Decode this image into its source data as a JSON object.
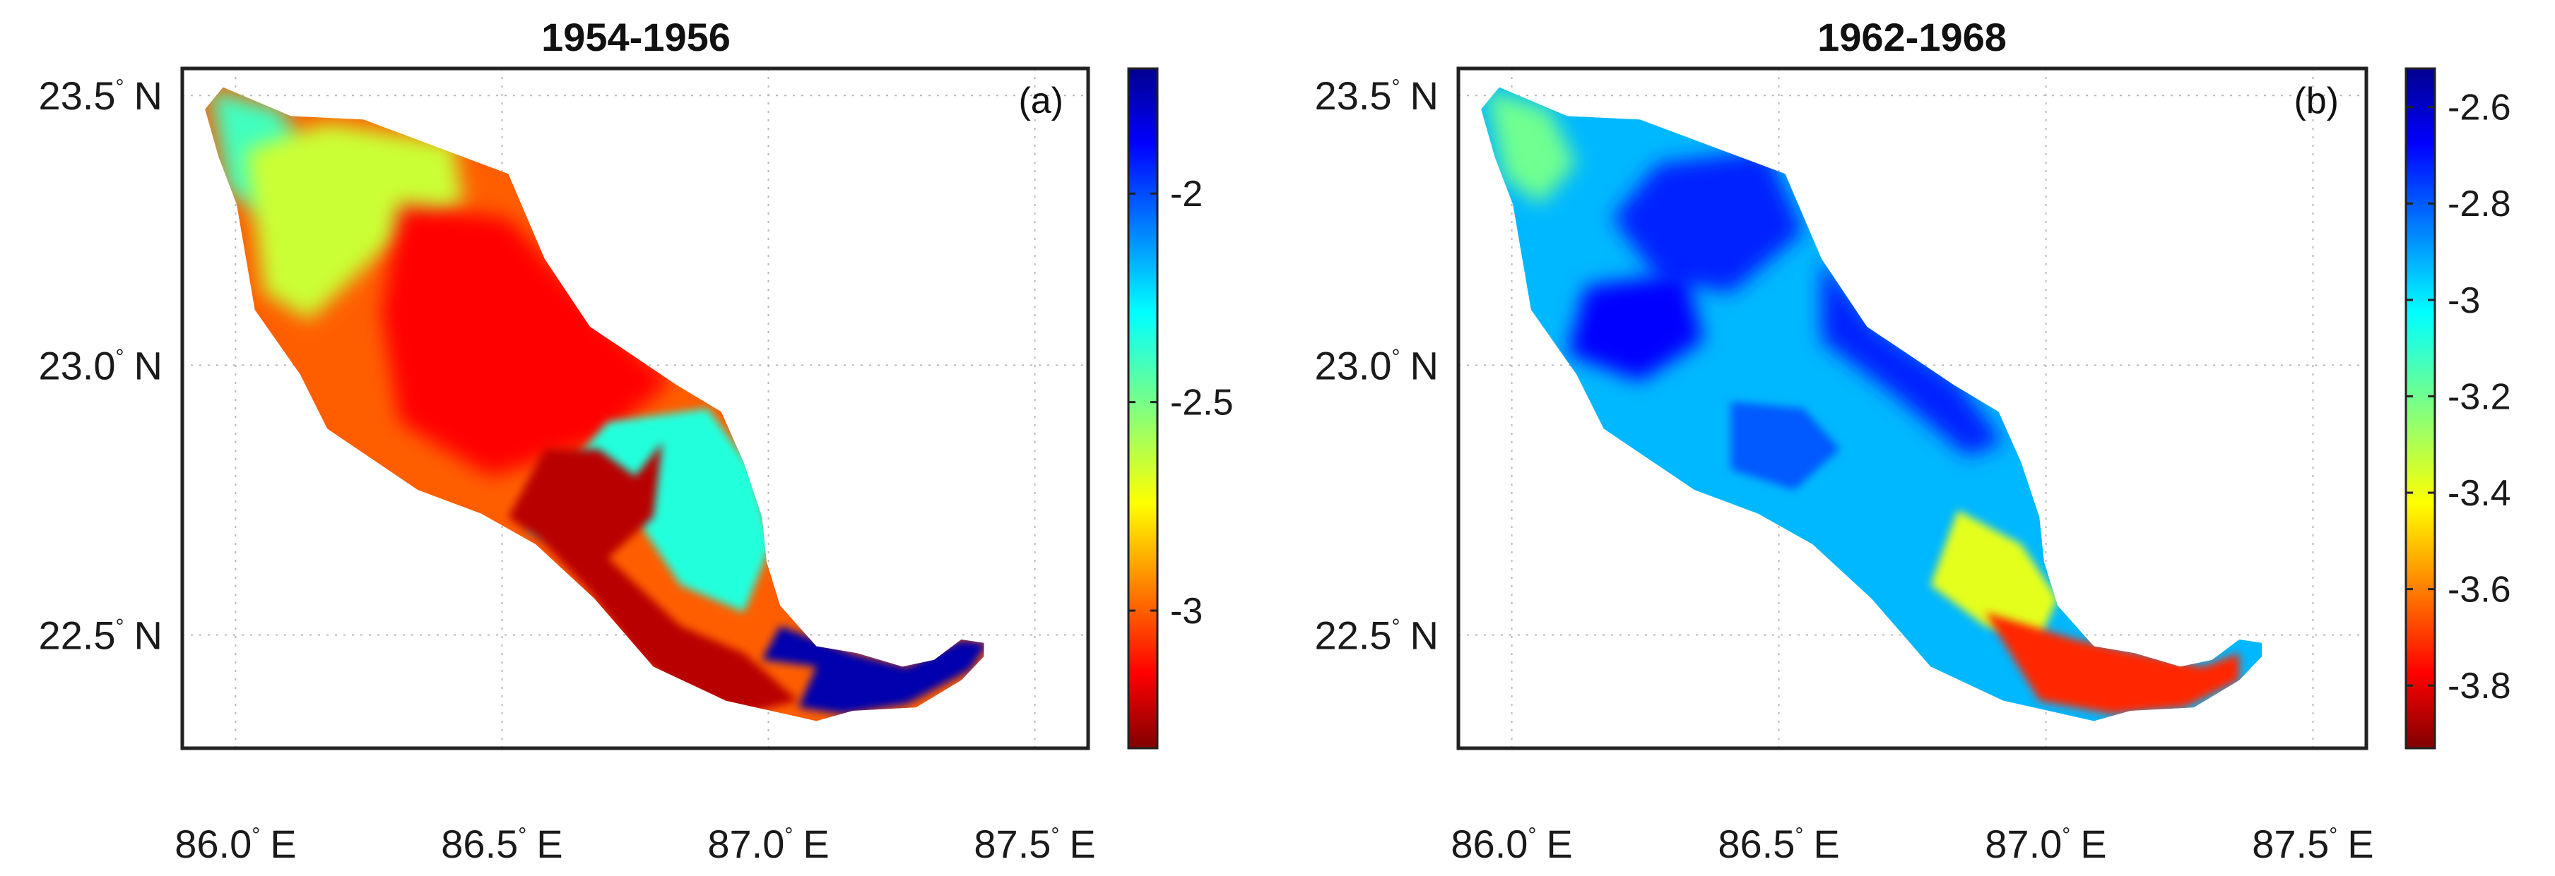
{
  "chart_data": [
    {
      "type": "heatmap",
      "title": "1954-1956",
      "panel_label": "(a)",
      "x_ticks": [
        {
          "value": 86.0,
          "label": "86.0",
          "suffix": "E"
        },
        {
          "value": 86.5,
          "label": "86.5",
          "suffix": "E"
        },
        {
          "value": 87.0,
          "label": "87.0",
          "suffix": "E"
        },
        {
          "value": 87.5,
          "label": "87.5",
          "suffix": "E"
        }
      ],
      "y_ticks": [
        {
          "value": 23.5,
          "label": "23.5",
          "suffix": "N"
        },
        {
          "value": 23.0,
          "label": "23.0",
          "suffix": "N"
        },
        {
          "value": 22.5,
          "label": "22.5",
          "suffix": "N"
        }
      ],
      "degree_symbol": "°",
      "xlim": [
        85.9,
        87.6
      ],
      "ylim": [
        22.29,
        23.55
      ],
      "grid": true,
      "colorbar": {
        "range": [
          -3.33,
          -1.7
        ],
        "ticks": [
          {
            "value": -2,
            "label": "-2"
          },
          {
            "value": -2.5,
            "label": "-2.5"
          },
          {
            "value": -3,
            "label": "-3"
          }
        ],
        "colormap": "jet"
      },
      "regions_by_value": [
        {
          "name": "basin-overall",
          "value": -3.0
        },
        {
          "name": "northwest-tip",
          "value": -2.4
        },
        {
          "name": "upper-west-band",
          "value": -2.65
        },
        {
          "name": "core-interior",
          "value": -3.15
        },
        {
          "name": "east-mid-lobe",
          "value": -2.35
        },
        {
          "name": "central-channel",
          "value": -3.25
        },
        {
          "name": "lower-delta",
          "value": -1.75
        }
      ]
    },
    {
      "type": "heatmap",
      "title": "1962-1968",
      "panel_label": "(b)",
      "x_ticks": [
        {
          "value": 86.0,
          "label": "86.0",
          "suffix": "E"
        },
        {
          "value": 86.5,
          "label": "86.5",
          "suffix": "E"
        },
        {
          "value": 87.0,
          "label": "87.0",
          "suffix": "E"
        },
        {
          "value": 87.5,
          "label": "87.5",
          "suffix": "E"
        }
      ],
      "y_ticks": [
        {
          "value": 23.5,
          "label": "23.5",
          "suffix": "N"
        },
        {
          "value": 23.0,
          "label": "23.0",
          "suffix": "N"
        },
        {
          "value": 22.5,
          "label": "22.5",
          "suffix": "N"
        }
      ],
      "degree_symbol": "°",
      "xlim": [
        85.9,
        87.6
      ],
      "ylim": [
        22.29,
        23.55
      ],
      "grid": true,
      "colorbar": {
        "range": [
          -3.93,
          -2.52
        ],
        "ticks": [
          {
            "value": -2.6,
            "label": "-2.6"
          },
          {
            "value": -2.8,
            "label": "-2.8"
          },
          {
            "value": -3,
            "label": "-3"
          },
          {
            "value": -3.2,
            "label": "-3.2"
          },
          {
            "value": -3.4,
            "label": "-3.4"
          },
          {
            "value": -3.6,
            "label": "-3.6"
          },
          {
            "value": -3.8,
            "label": "-3.8"
          }
        ],
        "colormap": "jet"
      },
      "regions_by_value": [
        {
          "name": "basin-overall",
          "value": -2.93
        },
        {
          "name": "northwest-tip",
          "value": -3.2
        },
        {
          "name": "north-dark-patch",
          "value": -2.72
        },
        {
          "name": "west-dark-patch",
          "value": -2.68
        },
        {
          "name": "east-edge-band",
          "value": -2.72
        },
        {
          "name": "mid-lower-patch",
          "value": -2.8
        },
        {
          "name": "yellow-transition",
          "value": -3.38
        },
        {
          "name": "southern-delta",
          "value": -3.72
        }
      ]
    }
  ]
}
